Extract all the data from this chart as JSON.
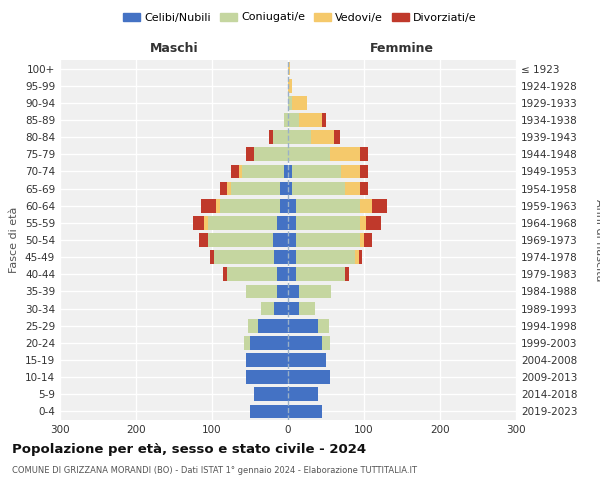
{
  "age_groups": [
    "0-4",
    "5-9",
    "10-14",
    "15-19",
    "20-24",
    "25-29",
    "30-34",
    "35-39",
    "40-44",
    "45-49",
    "50-54",
    "55-59",
    "60-64",
    "65-69",
    "70-74",
    "75-79",
    "80-84",
    "85-89",
    "90-94",
    "95-99",
    "100+"
  ],
  "birth_years": [
    "2019-2023",
    "2014-2018",
    "2009-2013",
    "2004-2008",
    "1999-2003",
    "1994-1998",
    "1989-1993",
    "1984-1988",
    "1979-1983",
    "1974-1978",
    "1969-1973",
    "1964-1968",
    "1959-1963",
    "1954-1958",
    "1949-1953",
    "1944-1948",
    "1939-1943",
    "1934-1938",
    "1929-1933",
    "1924-1928",
    "≤ 1923"
  ],
  "males": {
    "celibi": [
      50,
      45,
      55,
      55,
      50,
      40,
      18,
      15,
      15,
      18,
      20,
      15,
      10,
      10,
      5,
      0,
      0,
      0,
      0,
      0,
      0
    ],
    "coniugati": [
      0,
      0,
      0,
      0,
      8,
      12,
      18,
      40,
      65,
      80,
      85,
      90,
      80,
      65,
      55,
      45,
      20,
      5,
      0,
      0,
      0
    ],
    "vedovi": [
      0,
      0,
      0,
      0,
      0,
      0,
      0,
      0,
      0,
      0,
      0,
      5,
      5,
      5,
      5,
      0,
      0,
      0,
      0,
      0,
      0
    ],
    "divorziati": [
      0,
      0,
      0,
      0,
      0,
      0,
      0,
      0,
      5,
      5,
      12,
      15,
      20,
      10,
      10,
      10,
      5,
      0,
      0,
      0,
      0
    ]
  },
  "females": {
    "nubili": [
      45,
      40,
      55,
      50,
      45,
      40,
      15,
      15,
      10,
      10,
      10,
      10,
      10,
      5,
      5,
      0,
      0,
      0,
      0,
      0,
      0
    ],
    "coniugate": [
      0,
      0,
      0,
      0,
      10,
      14,
      20,
      42,
      65,
      78,
      85,
      85,
      85,
      70,
      65,
      55,
      30,
      15,
      5,
      0,
      0
    ],
    "vedove": [
      0,
      0,
      0,
      0,
      0,
      0,
      0,
      0,
      0,
      5,
      5,
      8,
      15,
      20,
      25,
      40,
      30,
      30,
      20,
      5,
      2
    ],
    "divorziate": [
      0,
      0,
      0,
      0,
      0,
      0,
      0,
      0,
      5,
      5,
      10,
      20,
      20,
      10,
      10,
      10,
      8,
      5,
      0,
      0,
      0
    ]
  },
  "colors": {
    "celibi": "#4472C4",
    "coniugati": "#C5D6A0",
    "vedovi": "#F5C96B",
    "divorziati": "#C0392B"
  },
  "title": "Popolazione per età, sesso e stato civile - 2024",
  "subtitle": "COMUNE DI GRIZZANA MORANDI (BO) - Dati ISTAT 1° gennaio 2024 - Elaborazione TUTTITALIA.IT",
  "xlabel_left": "Maschi",
  "xlabel_right": "Femmine",
  "ylabel_left": "Fasce di età",
  "ylabel_right": "Anni di nascita",
  "xlim": 300,
  "xticks": [
    -300,
    -200,
    -100,
    0,
    100,
    200,
    300
  ],
  "legend_labels": [
    "Celibi/Nubili",
    "Coniugati/e",
    "Vedovi/e",
    "Divorziati/e"
  ],
  "bg_color": "#ffffff",
  "plot_bg_color": "#f0f0f0"
}
